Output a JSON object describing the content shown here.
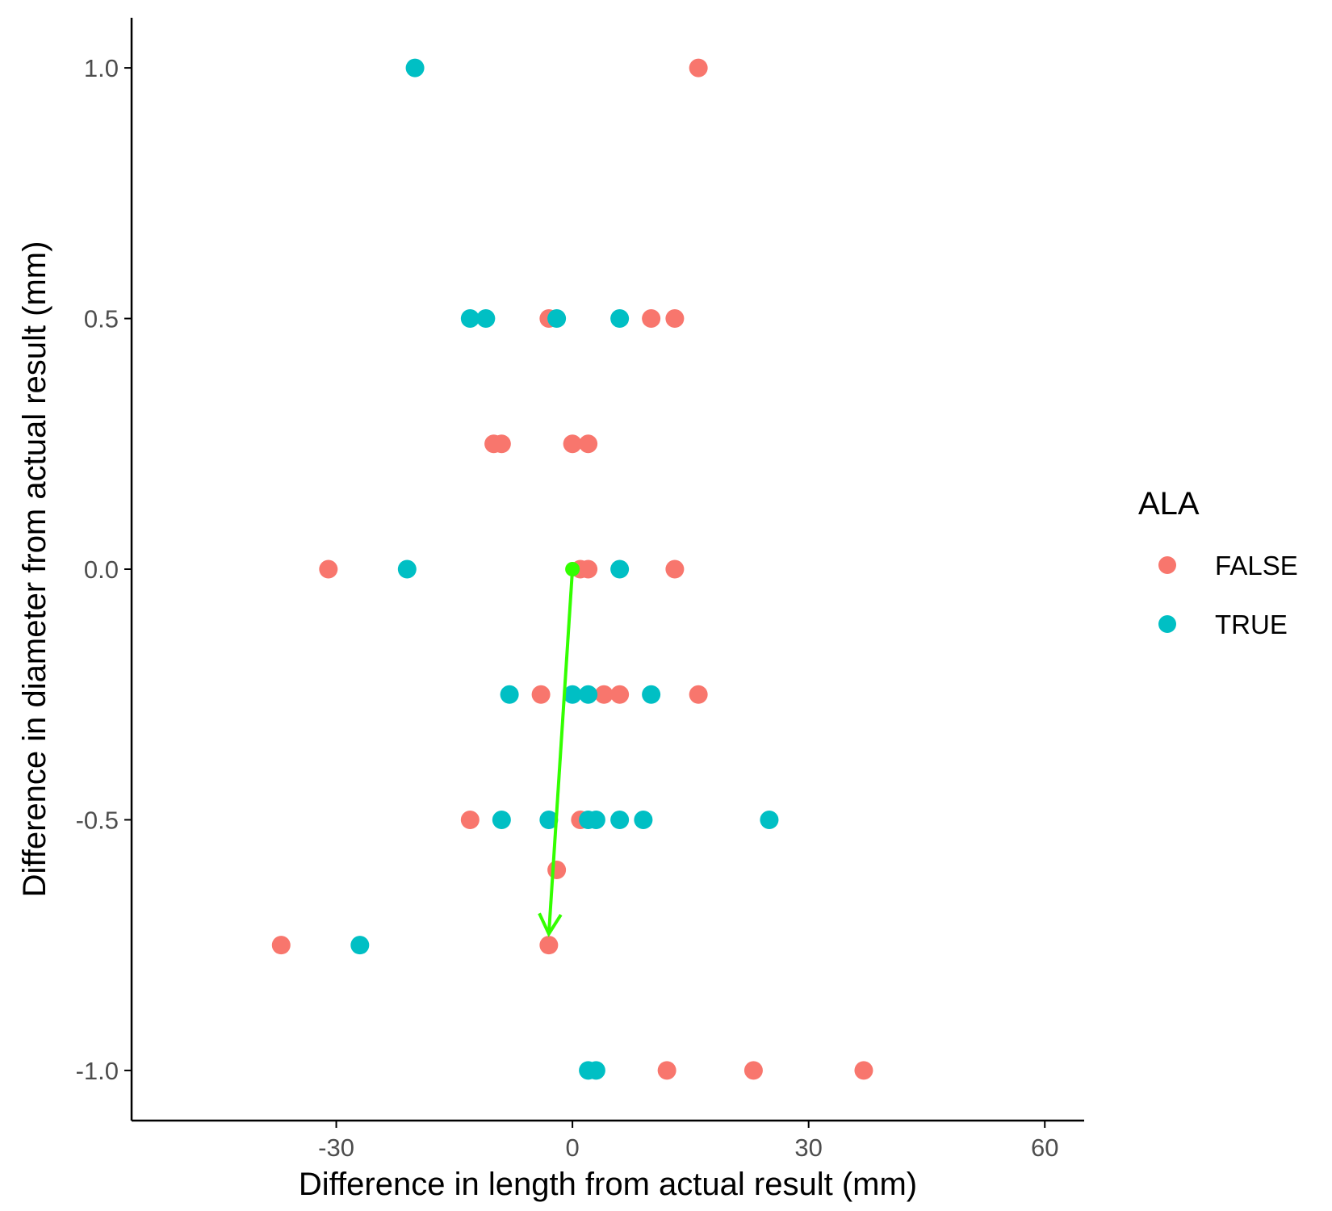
{
  "chart_data": {
    "type": "scatter",
    "xlabel": "Difference in length from actual result (mm)",
    "ylabel": "Difference in diameter from actual result (mm)",
    "xlim": [
      -56,
      65
    ],
    "ylim": [
      -1.1,
      1.1
    ],
    "x_ticks": [
      -30,
      0,
      30,
      60
    ],
    "y_ticks": [
      1.0,
      0.5,
      0.0,
      -0.5,
      -1.0
    ],
    "x_tick_labels": [
      "-30",
      "0",
      "30",
      "60"
    ],
    "y_tick_labels": [
      "1.0",
      "0.5",
      "0.0",
      "-0.5",
      "-1.0"
    ],
    "grid": false,
    "legend": {
      "title": "ALA",
      "position": "right",
      "entries": [
        {
          "label": "FALSE",
          "color": "#F8766D"
        },
        {
          "label": "TRUE",
          "color": "#00BFC4"
        }
      ]
    },
    "series": [
      {
        "name": "FALSE",
        "color": "#F8766D",
        "points": [
          {
            "x": 16,
            "y": 1.0
          },
          {
            "x": -3,
            "y": 0.5
          },
          {
            "x": 10,
            "y": 0.5
          },
          {
            "x": 13,
            "y": 0.5
          },
          {
            "x": -10,
            "y": 0.25
          },
          {
            "x": -9,
            "y": 0.25
          },
          {
            "x": 0,
            "y": 0.25
          },
          {
            "x": 2,
            "y": 0.25
          },
          {
            "x": -31,
            "y": 0.0
          },
          {
            "x": 1,
            "y": 0.0
          },
          {
            "x": 2,
            "y": 0.0
          },
          {
            "x": 13,
            "y": 0.0
          },
          {
            "x": -4,
            "y": -0.25
          },
          {
            "x": 4,
            "y": -0.25
          },
          {
            "x": 6,
            "y": -0.25
          },
          {
            "x": 16,
            "y": -0.25
          },
          {
            "x": -13,
            "y": -0.5
          },
          {
            "x": 1,
            "y": -0.5
          },
          {
            "x": -2,
            "y": -0.6
          },
          {
            "x": -37,
            "y": -0.75
          },
          {
            "x": -3,
            "y": -0.75
          },
          {
            "x": 12,
            "y": -1.0
          },
          {
            "x": 23,
            "y": -1.0
          },
          {
            "x": 37,
            "y": -1.0
          }
        ]
      },
      {
        "name": "TRUE",
        "color": "#00BFC4",
        "points": [
          {
            "x": -20,
            "y": 1.0
          },
          {
            "x": -13,
            "y": 0.5
          },
          {
            "x": -11,
            "y": 0.5
          },
          {
            "x": -2,
            "y": 0.5
          },
          {
            "x": 6,
            "y": 0.5
          },
          {
            "x": -21,
            "y": 0.0
          },
          {
            "x": 6,
            "y": 0.0
          },
          {
            "x": -8,
            "y": -0.25
          },
          {
            "x": 0,
            "y": -0.25
          },
          {
            "x": 2,
            "y": -0.25
          },
          {
            "x": 10,
            "y": -0.25
          },
          {
            "x": -9,
            "y": -0.5
          },
          {
            "x": -3,
            "y": -0.5
          },
          {
            "x": 2,
            "y": -0.5
          },
          {
            "x": 3,
            "y": -0.5
          },
          {
            "x": 6,
            "y": -0.5
          },
          {
            "x": 9,
            "y": -0.5
          },
          {
            "x": 25,
            "y": -0.5
          },
          {
            "x": -27,
            "y": -0.75
          },
          {
            "x": 2,
            "y": -1.0
          },
          {
            "x": 3,
            "y": -1.0
          }
        ]
      }
    ],
    "annotation": {
      "type": "arrow",
      "color": "#33FF00",
      "from": {
        "x": 0,
        "y": 0.0
      },
      "to": {
        "x": -3,
        "y": -0.75
      }
    }
  }
}
